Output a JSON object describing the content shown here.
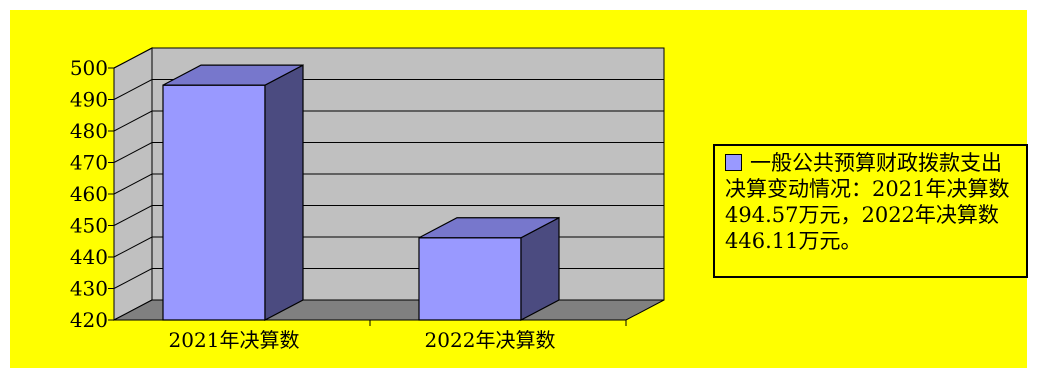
{
  "chart_data": {
    "type": "bar",
    "categories": [
      "2021年决算数",
      "2022年决算数"
    ],
    "series": [
      {
        "name": "一般公共预算财政拨款支出决算变动情况：2021年决算数494.57万元，2022年决算数446.11万元。",
        "values": [
          494.57,
          446.11
        ]
      }
    ],
    "yticks": [
      420,
      430,
      440,
      450,
      460,
      470,
      480,
      490,
      500
    ],
    "ylim": [
      420,
      500
    ],
    "grid": true,
    "legend_position": "right",
    "three_d": true
  },
  "colors": {
    "background": "#ffff00",
    "wall": "#c0c0c0",
    "floor": "#808080",
    "bar_front": "#9999ff",
    "bar_side": "#4b4b80",
    "bar_top": "#7777cc"
  }
}
